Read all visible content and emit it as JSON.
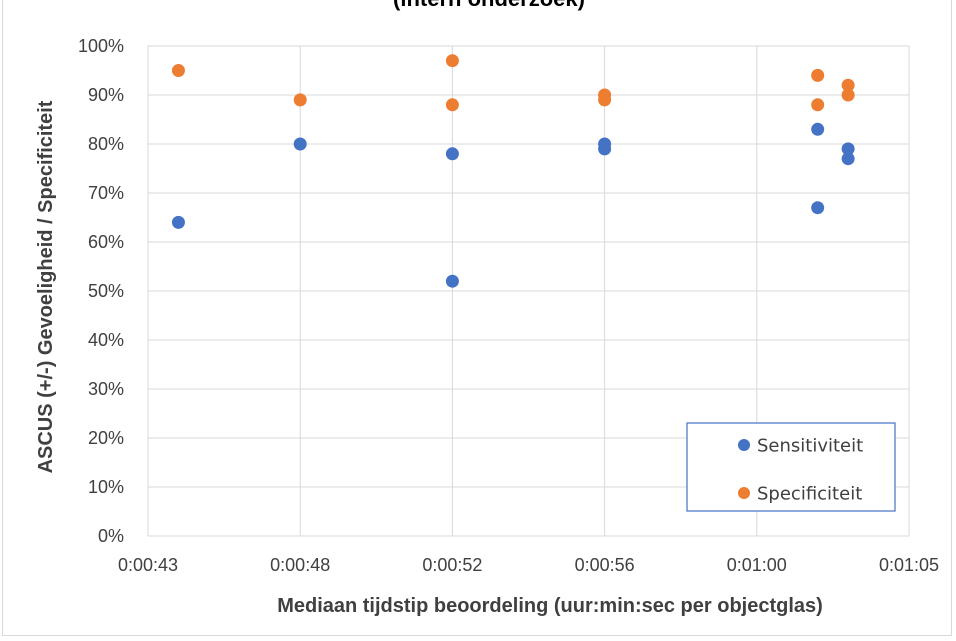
{
  "chart_data": {
    "type": "scatter",
    "title": "(intern onderzoek)",
    "xlabel": "Mediaan tijdstip beoordeling (uur:min:sec per objectglas)",
    "ylabel": "ASCUS (+/-) Gevoeligheid / Specificiteit",
    "xlim": [
      "0:00:43",
      "0:01:05"
    ],
    "ylim": [
      "0%",
      "100%"
    ],
    "x_ticks": [
      "0:00:43",
      "0:00:48",
      "0:00:52",
      "0:00:56",
      "0:01:00",
      "0:01:05"
    ],
    "y_ticks": [
      "0%",
      "10%",
      "20%",
      "30%",
      "40%",
      "50%",
      "60%",
      "70%",
      "80%",
      "90%",
      "100%"
    ],
    "grid": true,
    "legend_position": "bottom-right",
    "series": [
      {
        "name": "Sensitiviteit",
        "color": "#4472c4",
        "points": [
          {
            "x": "0:00:44",
            "y": "64%"
          },
          {
            "x": "0:00:48",
            "y": "80%"
          },
          {
            "x": "0:00:52",
            "y": "78%"
          },
          {
            "x": "0:00:52",
            "y": "52%"
          },
          {
            "x": "0:00:56",
            "y": "80%"
          },
          {
            "x": "0:00:56",
            "y": "79%"
          },
          {
            "x": "0:01:02",
            "y": "83%"
          },
          {
            "x": "0:01:02",
            "y": "67%"
          },
          {
            "x": "0:01:03",
            "y": "79%"
          },
          {
            "x": "0:01:03",
            "y": "77%"
          }
        ]
      },
      {
        "name": "Specificiteit",
        "color": "#ed7d31",
        "points": [
          {
            "x": "0:00:44",
            "y": "95%"
          },
          {
            "x": "0:00:48",
            "y": "89%"
          },
          {
            "x": "0:00:52",
            "y": "97%"
          },
          {
            "x": "0:00:52",
            "y": "88%"
          },
          {
            "x": "0:00:56",
            "y": "90%"
          },
          {
            "x": "0:00:56",
            "y": "89%"
          },
          {
            "x": "0:01:02",
            "y": "94%"
          },
          {
            "x": "0:01:02",
            "y": "88%"
          },
          {
            "x": "0:01:03",
            "y": "92%"
          },
          {
            "x": "0:01:03",
            "y": "90%"
          }
        ]
      }
    ]
  }
}
